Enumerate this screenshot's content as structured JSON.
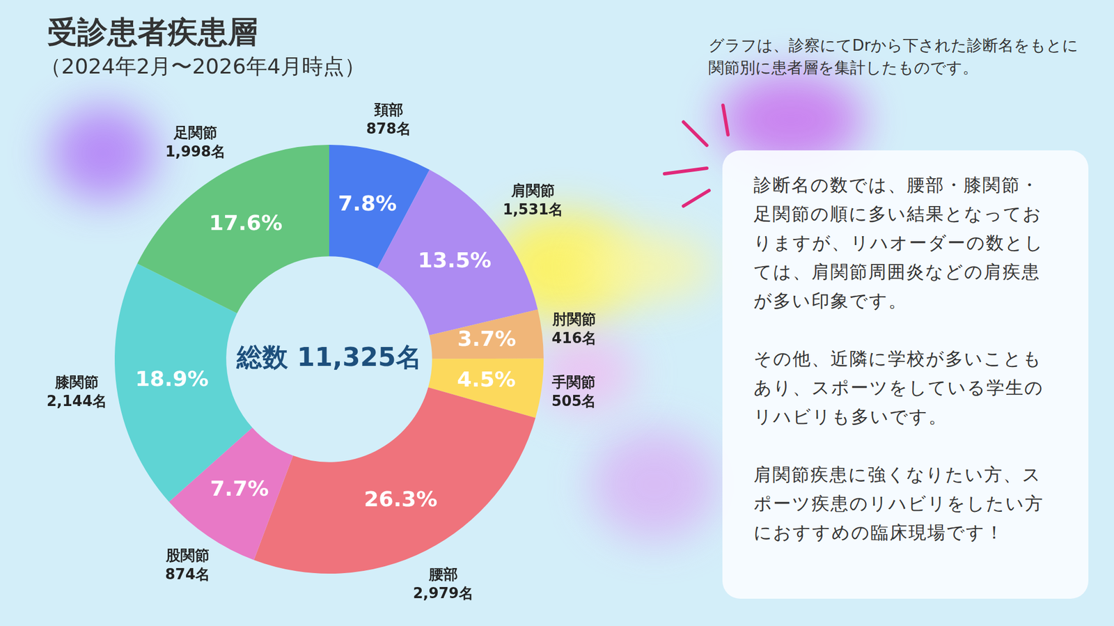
{
  "chart_data": {
    "type": "doughnut",
    "title": "受診患者疾患層",
    "subtitle": "（2024年2月〜2026年4月時点）",
    "center_label": "総数 11,325名",
    "categories": [
      "頚部",
      "肩関節",
      "肘関節",
      "手関節",
      "腰部",
      "股関節",
      "膝関節",
      "足関節"
    ],
    "values": [
      878,
      1531,
      416,
      505,
      2979,
      874,
      2144,
      1998
    ],
    "value_labels": [
      "878名",
      "1,531名",
      "416名",
      "505名",
      "2,979名",
      "874名",
      "2,144名",
      "1,998名"
    ],
    "percentages": [
      7.8,
      13.5,
      3.7,
      4.5,
      26.3,
      7.7,
      18.9,
      17.6
    ],
    "percentage_labels": [
      "7.8%",
      "13.5%",
      "3.7%",
      "4.5%",
      "26.3%",
      "7.7%",
      "18.9%",
      "17.6%"
    ],
    "colors": [
      "#4a7cf0",
      "#ad8bf2",
      "#f0b679",
      "#fcd95c",
      "#ef737c",
      "#e879c6",
      "#5fd4d4",
      "#64c57e"
    ],
    "data_labels": true
  },
  "note": [
    "グラフは、診察にてDrから下された診断名をもとに",
    "関節別に患者層を集計したものです。"
  ],
  "panel": {
    "paragraphs": [
      [
        "診断名の数では、腰部・膝関節・",
        "足関節の順に多い結果となってお",
        "りますが、リハオーダーの数とし",
        "ては、肩関節周囲炎などの肩疾患",
        "が多い印象です。"
      ],
      [
        "その他、近隣に学校が多いことも",
        "あり、スポーツをしている学生の",
        "リハビリも多いです。"
      ],
      [
        "肩関節疾患に強くなりたい方、ス",
        "ポーツ疾患のリハビリをしたい方",
        "におすすめの臨床現場です！"
      ]
    ]
  }
}
